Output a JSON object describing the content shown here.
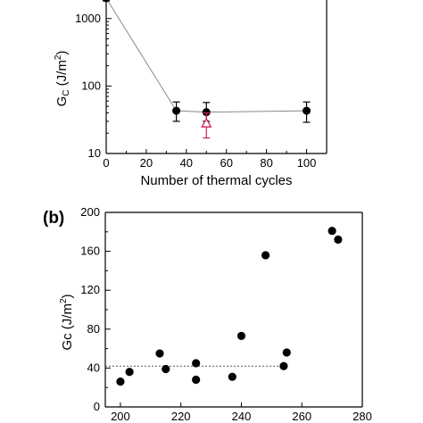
{
  "chart_data": [
    {
      "type": "scatter",
      "title": "",
      "xlabel": "Number of thermal cycles",
      "ylabel_main": "G",
      "ylabel_sub": "C",
      "ylabel_unit": " (J/m",
      "ylabel_sup": "2",
      "ylabel_close": ")",
      "xlim": [
        0,
        110
      ],
      "ylim": [
        10,
        2000
      ],
      "yscale": "log",
      "xticks": [
        "0",
        "20",
        "40",
        "60",
        "80",
        "100"
      ],
      "yticks": [
        "10",
        "100",
        "1000"
      ],
      "grid": false,
      "series": [
        {
          "marker": "filled-circle",
          "color": "#000000",
          "connected": true,
          "points": [
            {
              "x": 0,
              "y": 2000,
              "err_low": 2000,
              "err_high": 2000
            },
            {
              "x": 35,
              "y": 43,
              "err_low": 30,
              "err_high": 58
            },
            {
              "x": 50,
              "y": 41,
              "err_low": 30,
              "err_high": 57
            },
            {
              "x": 100,
              "y": 43,
              "err_low": 29,
              "err_high": 58
            }
          ]
        },
        {
          "marker": "open-triangle",
          "color": "#cc2255",
          "connected": false,
          "points": [
            {
              "x": 50,
              "y": 28,
              "err_low": 17,
              "err_high": 40
            }
          ]
        }
      ]
    },
    {
      "type": "scatter",
      "panel_label": "(b)",
      "title": "",
      "xlabel": "",
      "ylabel": "Gc (J/m",
      "ylabel_sup": "2",
      "ylabel_close": ")",
      "xlim": [
        195,
        280
      ],
      "ylim": [
        0,
        200
      ],
      "xticks": [
        "200",
        "220",
        "240",
        "260",
        "280"
      ],
      "yticks": [
        "0",
        "40",
        "80",
        "120",
        "160",
        "200"
      ],
      "grid": false,
      "reference_line": {
        "y": 42,
        "style": "dotted",
        "color": "#555555"
      },
      "series": [
        {
          "marker": "filled-circle",
          "color": "#000000",
          "points": [
            {
              "x": 200,
              "y": 26
            },
            {
              "x": 203,
              "y": 36
            },
            {
              "x": 213,
              "y": 55
            },
            {
              "x": 215,
              "y": 39
            },
            {
              "x": 225,
              "y": 45
            },
            {
              "x": 225,
              "y": 28
            },
            {
              "x": 237,
              "y": 31
            },
            {
              "x": 240,
              "y": 73
            },
            {
              "x": 248,
              "y": 156
            },
            {
              "x": 254,
              "y": 42
            },
            {
              "x": 255,
              "y": 56
            },
            {
              "x": 270,
              "y": 181
            },
            {
              "x": 272,
              "y": 172
            }
          ]
        }
      ]
    }
  ]
}
